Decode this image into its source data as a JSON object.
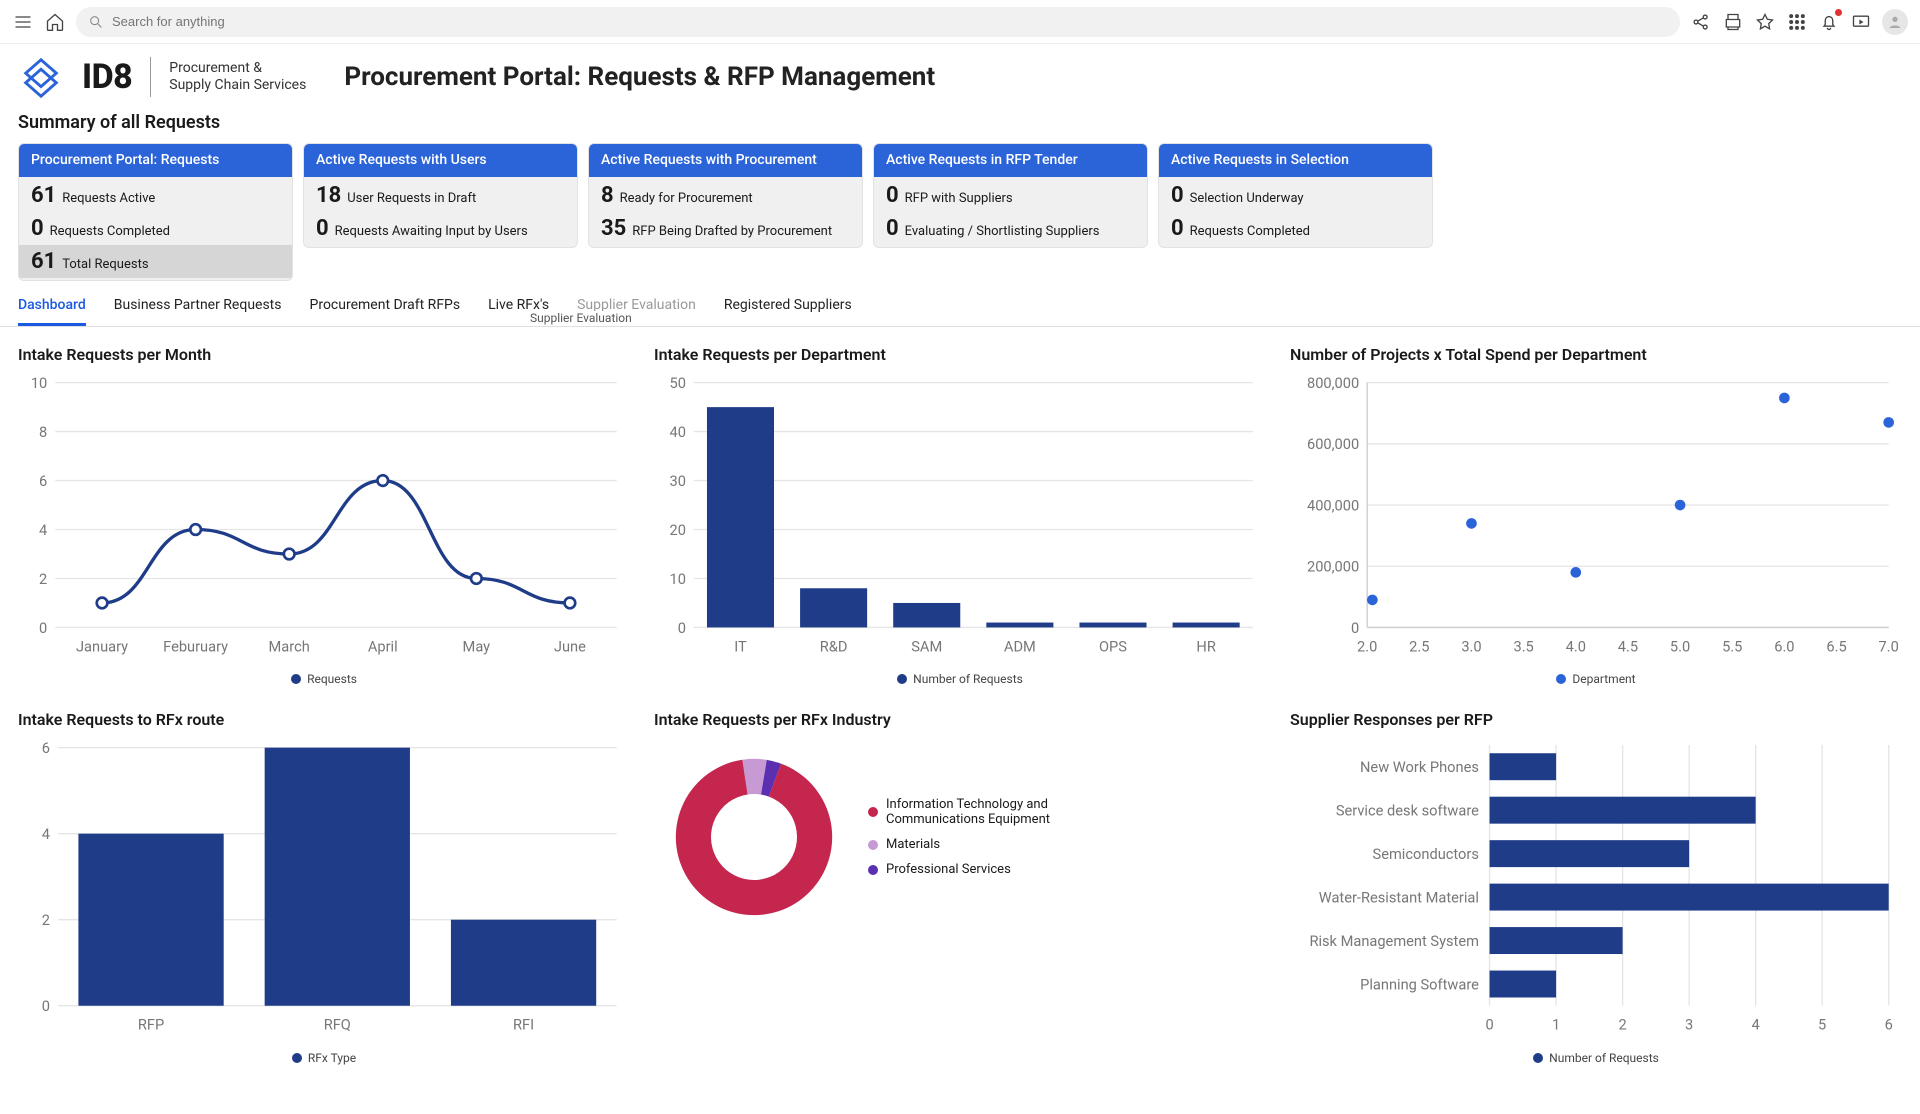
{
  "toolbar": {
    "search_placeholder": "Search for anything"
  },
  "brand": {
    "name": "ID8",
    "sub1": "Procurement &",
    "sub2": "Supply Chain Services",
    "logo_color": "#2b63d9"
  },
  "page_title": "Procurement Portal: Requests & RFP Management",
  "summary_label": "Summary of all Requests",
  "cards": [
    {
      "title": "Procurement Portal: Requests",
      "rows": [
        {
          "num": "61",
          "label": "Requests Active"
        },
        {
          "num": "0",
          "label": "Requests Completed"
        },
        {
          "num": "61",
          "label": "Total Requests",
          "highlight": true
        }
      ]
    },
    {
      "title": "Active Requests with Users",
      "rows": [
        {
          "num": "18",
          "label": "User Requests in Draft"
        },
        {
          "num": "0",
          "label": "Requests Awaiting Input by Users"
        }
      ]
    },
    {
      "title": "Active Requests with Procurement",
      "rows": [
        {
          "num": "8",
          "label": "Ready for Procurement"
        },
        {
          "num": "35",
          "label": "RFP Being Drafted by Procurement"
        }
      ]
    },
    {
      "title": "Active Requests in RFP Tender",
      "rows": [
        {
          "num": "0",
          "label": "RFP with Suppliers"
        },
        {
          "num": "0",
          "label": "Evaluating / Shortlisting Suppliers"
        }
      ]
    },
    {
      "title": "Active Requests in Selection",
      "rows": [
        {
          "num": "0",
          "label": "Selection Underway"
        },
        {
          "num": "0",
          "label": "Requests Completed"
        }
      ]
    }
  ],
  "tabs": {
    "items": [
      "Dashboard",
      "Business Partner Requests",
      "Procurement Draft RFPs",
      "Live RFx's",
      "Supplier Evaluation",
      "Registered Suppliers"
    ],
    "active_index": 0,
    "muted_index": 4,
    "hover_tooltip": "Supplier Evaluation"
  },
  "charts": {
    "intake_month": {
      "title": "Intake Requests per Month",
      "type": "line",
      "categories": [
        "January",
        "Feburuary",
        "March",
        "April",
        "May",
        "June"
      ],
      "values": [
        1,
        4,
        3,
        6,
        2,
        1
      ],
      "ylim": [
        0,
        10
      ],
      "ytick_step": 2,
      "line_color": "#1f3c88",
      "marker_fill": "#ffffff",
      "marker_stroke": "#1f3c88",
      "legend_label": "Requests",
      "legend_dot_color": "#1f3c88",
      "grid_color": "#e5e5e5",
      "title_fontsize": 16
    },
    "intake_dept": {
      "title": "Intake Requests per Department",
      "type": "bar",
      "categories": [
        "IT",
        "R&D",
        "SAM",
        "ADM",
        "OPS",
        "HR"
      ],
      "values": [
        45,
        8,
        5,
        1,
        1,
        1
      ],
      "ylim": [
        0,
        50
      ],
      "ytick_step": 10,
      "bar_color": "#1f3c88",
      "legend_label": "Number of Requests",
      "legend_dot_color": "#1f3c88",
      "grid_color": "#e5e5e5"
    },
    "projects_spend": {
      "title": "Number of Projects x Total Spend per Department",
      "type": "scatter",
      "points": [
        {
          "x": 2.05,
          "y": 90000
        },
        {
          "x": 3.0,
          "y": 340000
        },
        {
          "x": 4.0,
          "y": 180000
        },
        {
          "x": 5.0,
          "y": 400000
        },
        {
          "x": 6.0,
          "y": 750000
        },
        {
          "x": 7.0,
          "y": 670000
        }
      ],
      "xlim": [
        2.0,
        7.0
      ],
      "xtick_step": 0.5,
      "ylim": [
        0,
        800000
      ],
      "ytick_step": 200000,
      "xlabel": "Department",
      "point_color": "#2b63d9",
      "legend_dot_color": "#2b63d9",
      "grid_color": "#f0f0f0"
    },
    "rfx_route": {
      "title": "Intake Requests to RFx route",
      "type": "bar",
      "categories": [
        "RFP",
        "RFQ",
        "RFI"
      ],
      "values": [
        4,
        6,
        2
      ],
      "ylim": [
        0,
        6
      ],
      "ytick_step": 2,
      "bar_color": "#1f3c88",
      "legend_label": "RFx Type",
      "legend_dot_color": "#1f3c88",
      "grid_color": "#e5e5e5"
    },
    "rfx_industry": {
      "title": "Intake Requests per RFx Industry",
      "type": "donut",
      "slices": [
        {
          "label": "Information Technology and Communications Equipment",
          "value": 92,
          "color": "#c4264e"
        },
        {
          "label": "Materials",
          "value": 5,
          "color": "#c79ad4"
        },
        {
          "label": "Professional Services",
          "value": 3,
          "color": "#5a2fb0"
        }
      ],
      "inner_radius_ratio": 0.55,
      "background_color": "#ffffff"
    },
    "supplier_resp": {
      "title": "Supplier Responses per RFP",
      "type": "hbar",
      "categories": [
        "New Work Phones",
        "Service desk software",
        "Semiconductors",
        "Water-Resistant Material",
        "Risk Management System",
        "Planning Software"
      ],
      "values": [
        1,
        4,
        3,
        6,
        2,
        1
      ],
      "xlim": [
        0,
        6
      ],
      "xtick_step": 1,
      "bar_color": "#1f3c88",
      "xlabel": "Number of Requests",
      "legend_dot_color": "#1f3c88",
      "grid_color": "#e5e5e5"
    }
  }
}
